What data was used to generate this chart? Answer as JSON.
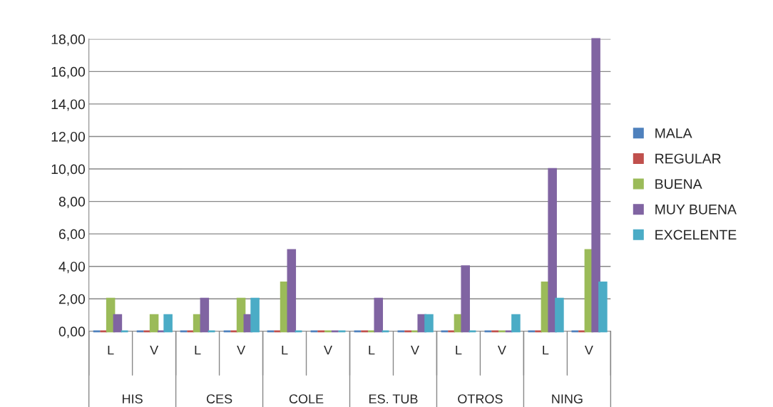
{
  "chart_data": {
    "type": "bar",
    "categories": [
      "L",
      "V",
      "L",
      "V",
      "L",
      "V",
      "L",
      "V",
      "L",
      "V",
      "L",
      "V"
    ],
    "annotations": [
      "HIS",
      "CES",
      "COLE",
      "ES. TUB",
      "OTROS",
      "NING"
    ],
    "series": [
      {
        "name": "MALA",
        "color": "#4f81bd",
        "values": [
          0,
          0,
          0,
          0,
          0,
          0,
          0,
          0,
          0,
          0,
          0,
          0
        ]
      },
      {
        "name": "REGULAR",
        "color": "#c0504d",
        "values": [
          0,
          0,
          0,
          0,
          0,
          0,
          0,
          0,
          0,
          0,
          0,
          0
        ]
      },
      {
        "name": "BUENA",
        "color": "#9bbb59",
        "values": [
          2,
          1,
          1,
          2,
          3,
          0,
          0,
          0,
          1,
          0,
          3,
          5
        ]
      },
      {
        "name": "MUY BUENA",
        "color": "#8064a2",
        "values": [
          1,
          0,
          2,
          1,
          5,
          0,
          2,
          1,
          4,
          0,
          10,
          18
        ]
      },
      {
        "name": "EXCELENTE",
        "color": "#4bacc6",
        "values": [
          0,
          1,
          0,
          2,
          0,
          0,
          0,
          1,
          0,
          1,
          2,
          3
        ]
      }
    ],
    "ylim": [
      0,
      18
    ],
    "yticks": [
      {
        "value": 0,
        "label": "0,00"
      },
      {
        "value": 2,
        "label": "2,00"
      },
      {
        "value": 4,
        "label": "4,00"
      },
      {
        "value": 6,
        "label": "6,00"
      },
      {
        "value": 8,
        "label": "8,00"
      },
      {
        "value": 10,
        "label": "10,00"
      },
      {
        "value": 12,
        "label": "12,00"
      },
      {
        "value": 14,
        "label": "14,00"
      },
      {
        "value": 16,
        "label": "16,00"
      },
      {
        "value": 18,
        "label": "18,00"
      }
    ],
    "grid": "y",
    "legend": "right"
  }
}
